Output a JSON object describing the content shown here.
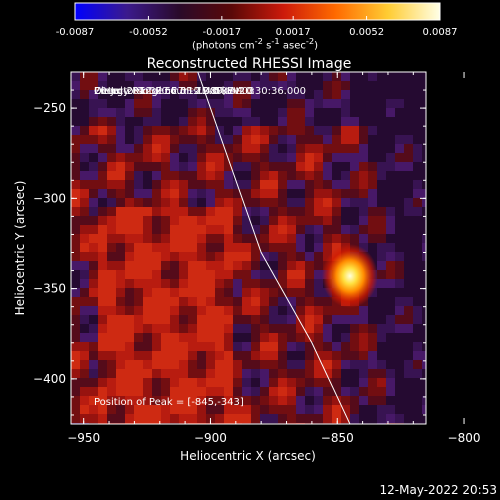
{
  "chart_data": {
    "type": "heatmap",
    "title": "Reconstructed RHESSI Image",
    "colorbar": {
      "ticks": [
        "-0.0087",
        "-0.0052",
        "-0.0017",
        "0.0017",
        "0.0052",
        "0.0087"
      ],
      "min": -0.0087,
      "max": 0.0087,
      "unit_html": "(photons cm<sup>-2</sup> s<sup>-1</sup> asec<sup>-2</sup>)",
      "colors": [
        "#0000ff",
        "#3b1a8c",
        "#2a0a2a",
        "#5a0808",
        "#cc1a0a",
        "#ff6a00",
        "#ffcc33",
        "#ffffe6"
      ]
    },
    "xlabel": "Heliocentric X (arcsec)",
    "ylabel": "Heliocentric Y (arcsec)",
    "xlim": [
      -955,
      -815
    ],
    "ylim": [
      -425,
      -230
    ],
    "xticks": [
      -950,
      -900,
      -850,
      -800
    ],
    "yticks": [
      -250,
      -300,
      -350,
      -400
    ],
    "peak": {
      "x": -845,
      "y": -343
    },
    "annotations": [
      "20-Jul-2012 20:27:12.000 to 20:30:36.000",
      "Detectors: 3F 5F 6F 7F 8F, Att 0",
      "Energy Range: 6.0 - 12.0 keV",
      "Clean     Total counts: 4.58E+03"
    ],
    "peak_label": "Position of Peak = [-845,-343]",
    "limb_curve": [
      [
        -905,
        -230
      ],
      [
        -880,
        -330
      ],
      [
        -860,
        -380
      ],
      [
        -845,
        -425
      ]
    ]
  },
  "footer": {
    "timestamp": "12-May-2022 20:53"
  }
}
